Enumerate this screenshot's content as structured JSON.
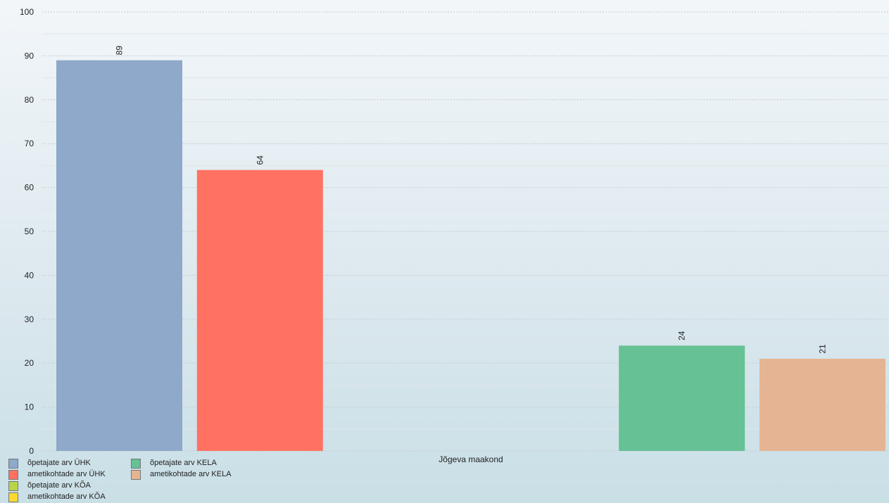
{
  "chart_data": {
    "type": "bar",
    "categories": [
      "Jõgeva maakond"
    ],
    "ylim": [
      0,
      100
    ],
    "yticks": [
      0,
      10,
      20,
      30,
      40,
      50,
      60,
      70,
      80,
      90,
      100
    ],
    "grid": true,
    "legend_position": "bottom-left",
    "series": [
      {
        "name": "õpetajate arv ÜHK",
        "color": "#8ea9c9",
        "values": [
          89
        ],
        "value_labels": [
          "89"
        ]
      },
      {
        "name": "ametikohtade arv ÜHK",
        "color": "#ff7262",
        "values": [
          64
        ],
        "value_labels": [
          "64"
        ]
      },
      {
        "name": "õpetajate arv KÕA",
        "color": "#b8d54a",
        "values": [
          null
        ],
        "value_labels": [
          null
        ]
      },
      {
        "name": "ametikohtade arv KÕA",
        "color": "#ffd92f",
        "values": [
          null
        ],
        "value_labels": [
          null
        ]
      },
      {
        "name": "õpetajate arv KELA",
        "color": "#66c195",
        "values": [
          24
        ],
        "value_labels": [
          "24"
        ]
      },
      {
        "name": "ametikohtade arv KELA",
        "color": "#e5b493",
        "values": [
          21
        ],
        "value_labels": [
          "21"
        ]
      }
    ]
  }
}
